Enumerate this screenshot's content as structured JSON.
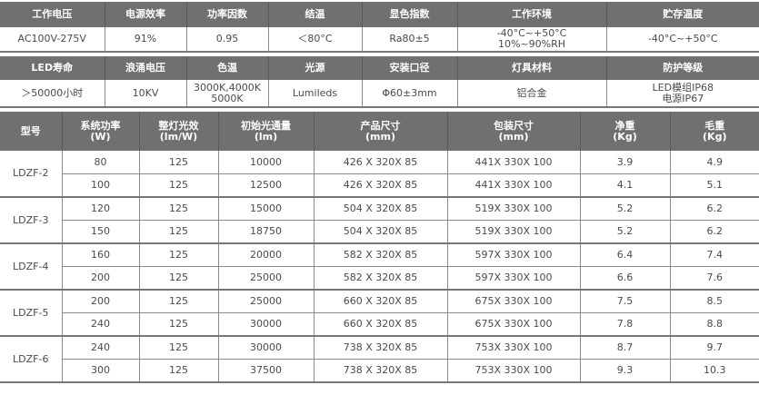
{
  "spec1": {
    "headers": [
      "工作电压",
      "电源效率",
      "功率因数",
      "结温",
      "显色指数",
      "工作环境",
      "贮存温度"
    ],
    "values": [
      "AC100V-275V",
      "91%",
      "0.95",
      "＜80°C",
      "Ra80±5",
      "-40°C~+50°C\n10%~90%RH",
      "-40°C~+50°C"
    ]
  },
  "spec2": {
    "headers": [
      "LED寿命",
      "浪涌电压",
      "色温",
      "光源",
      "安装口径",
      "灯具材料",
      "防护等级"
    ],
    "values": [
      "＞50000小时",
      "10KV",
      "3000K,4000K\n5000K",
      "Lumileds",
      "Φ60±3mm",
      "铝合金",
      "LED模组IP68\n电源IP67"
    ]
  },
  "models": {
    "headers": [
      "型号",
      "系统功率\n(W)",
      "整灯光效\n(lm/W)",
      "初始光通量\n(lm)",
      "产品尺寸\n(mm)",
      "包装尺寸\n(mm)",
      "净重\n(Kg)",
      "毛重\n(Kg)"
    ],
    "groups": [
      {
        "model": "LDZF-2",
        "rows": [
          [
            "80",
            "125",
            "10000",
            "426 X 320X 85",
            "441X 330X 100",
            "3.9",
            "4.9"
          ],
          [
            "100",
            "125",
            "12500",
            "426 X 320X 85",
            "441X 330X 100",
            "4.1",
            "5.1"
          ]
        ]
      },
      {
        "model": "LDZF-3",
        "rows": [
          [
            "120",
            "125",
            "15000",
            "504 X 320X 85",
            "519X 330X 100",
            "5.2",
            "6.2"
          ],
          [
            "150",
            "125",
            "18750",
            "504 X 320X 85",
            "519X 330X 100",
            "5.2",
            "6.2"
          ]
        ]
      },
      {
        "model": "LDZF-4",
        "rows": [
          [
            "160",
            "125",
            "20000",
            "582 X 320X 85",
            "597X 330X 100",
            "6.4",
            "7.4"
          ],
          [
            "200",
            "125",
            "25000",
            "582 X 320X 85",
            "597X 330X 100",
            "6.6",
            "7.6"
          ]
        ]
      },
      {
        "model": "LDZF-5",
        "rows": [
          [
            "200",
            "125",
            "25000",
            "660 X 320X 85",
            "675X 330X 100",
            "7.5",
            "8.5"
          ],
          [
            "240",
            "125",
            "30000",
            "660 X 320X 85",
            "675X 330X 100",
            "7.8",
            "8.8"
          ]
        ]
      },
      {
        "model": "LDZF-6",
        "rows": [
          [
            "240",
            "125",
            "30000",
            "738 X 320X 85",
            "753X 330X 100",
            "8.7",
            "9.7"
          ],
          [
            "300",
            "125",
            "37500",
            "738 X 320X 85",
            "753X 330X 100",
            "9.3",
            "10.3"
          ]
        ]
      }
    ]
  }
}
